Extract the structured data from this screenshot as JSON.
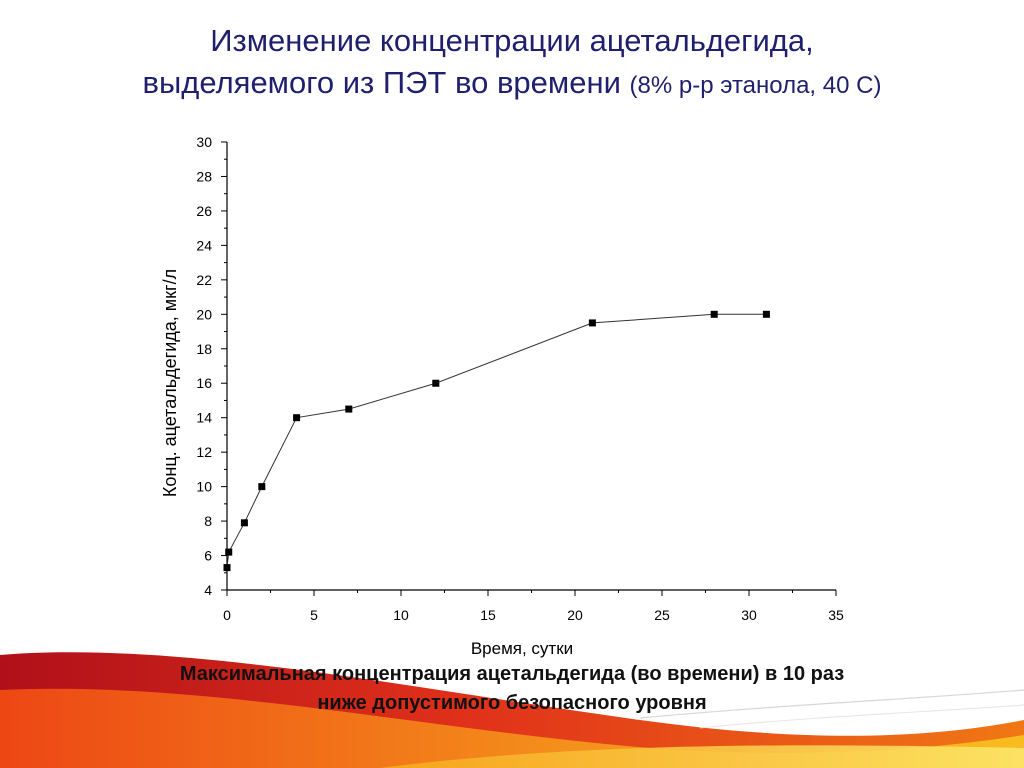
{
  "title": {
    "line1": "Изменение концентрации ацетальдегида,",
    "line2_main": "выделяемого из ПЭТ во времени",
    "line2_small": "(8% р-р этанола, 40 С)"
  },
  "note": {
    "line1": "Максимальная концентрация ацетальдегида (во времени) в 10 раз",
    "line2": "ниже  допустимого безопасного уровня"
  },
  "chart_data": {
    "type": "line",
    "title": "",
    "xlabel": "Время, сутки",
    "ylabel": "Конц. ацетальдегида, мкг/л",
    "xlim": [
      0,
      35
    ],
    "ylim": [
      4,
      30
    ],
    "x_ticks": [
      0,
      5,
      10,
      15,
      20,
      25,
      30,
      35
    ],
    "y_ticks": [
      4,
      6,
      8,
      10,
      12,
      14,
      16,
      18,
      20,
      22,
      24,
      26,
      28,
      30
    ],
    "grid": false,
    "marker": "square",
    "series": [
      {
        "x": [
          0,
          0.1,
          1,
          2,
          4,
          7,
          12,
          21,
          28,
          31
        ],
        "y": [
          5.3,
          6.2,
          7.9,
          10,
          14,
          14.5,
          16,
          19.5,
          20,
          20
        ]
      }
    ]
  },
  "colors": {
    "title": "#1f1f6e",
    "line": "#333333",
    "marker": "#000000",
    "decor_red": "#d2141e",
    "decor_orange": "#f07814",
    "decor_yellow": "#f8c020"
  }
}
